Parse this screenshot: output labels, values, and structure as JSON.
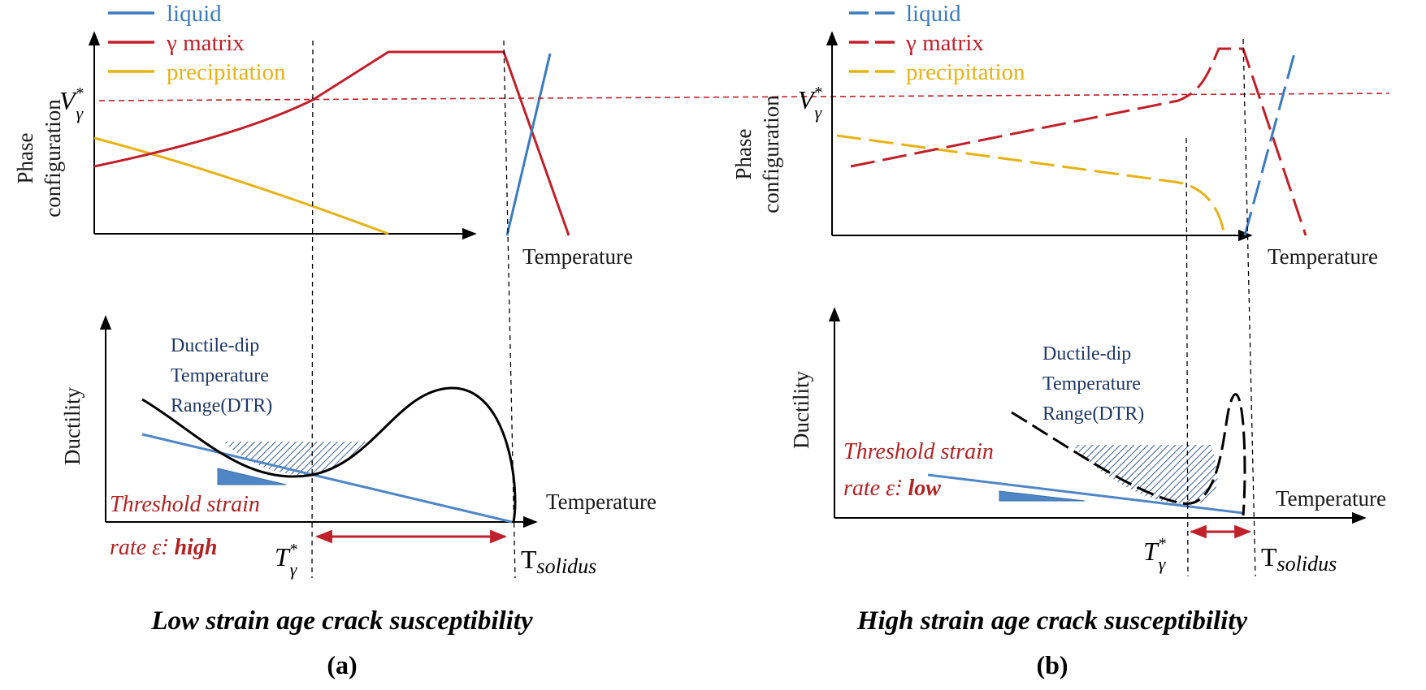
{
  "legend": {
    "liquid": "liquid",
    "gamma_matrix": "γ matrix",
    "precipitation": "precipitation"
  },
  "axes": {
    "phase_line1": "Phase",
    "phase_line2": "configuration",
    "temperature": "Temperature",
    "ductility": "Ductility"
  },
  "symbols": {
    "v_gamma_base": "V",
    "v_gamma_sub": "γ",
    "v_gamma_sup": "*",
    "t_gamma_base": "T",
    "t_gamma_sub": "γ",
    "t_gamma_sup": "*",
    "t_solidus_base": "T",
    "t_solidus_sub": "solidus"
  },
  "panel_a": {
    "dtr_line1": "Ductile-dip",
    "dtr_line2": "Temperature",
    "dtr_line3": "Range(DTR)",
    "threshold_line1": "Threshold strain",
    "threshold_line2_prefix": "rate ε̇: ",
    "threshold_value": "high",
    "caption": "Low strain age crack susceptibility",
    "label": "(a)"
  },
  "panel_b": {
    "dtr_line1": "Ductile-dip",
    "dtr_line2": "Temperature",
    "dtr_line3": "Range(DTR)",
    "threshold_line1": "Threshold strain",
    "threshold_line2_prefix": "rate ε̇: ",
    "threshold_value": "low",
    "caption": "High strain age crack susceptibility",
    "label": "(b)"
  },
  "colors": {
    "liquid": "#3b7bbf",
    "gamma_matrix": "#c0202a",
    "precipitation": "#e6b214",
    "threshold": "#4f86c6",
    "threshold_text": "#b22222",
    "dtr_text": "#1f3864",
    "hatch": "#3a5f8f"
  }
}
